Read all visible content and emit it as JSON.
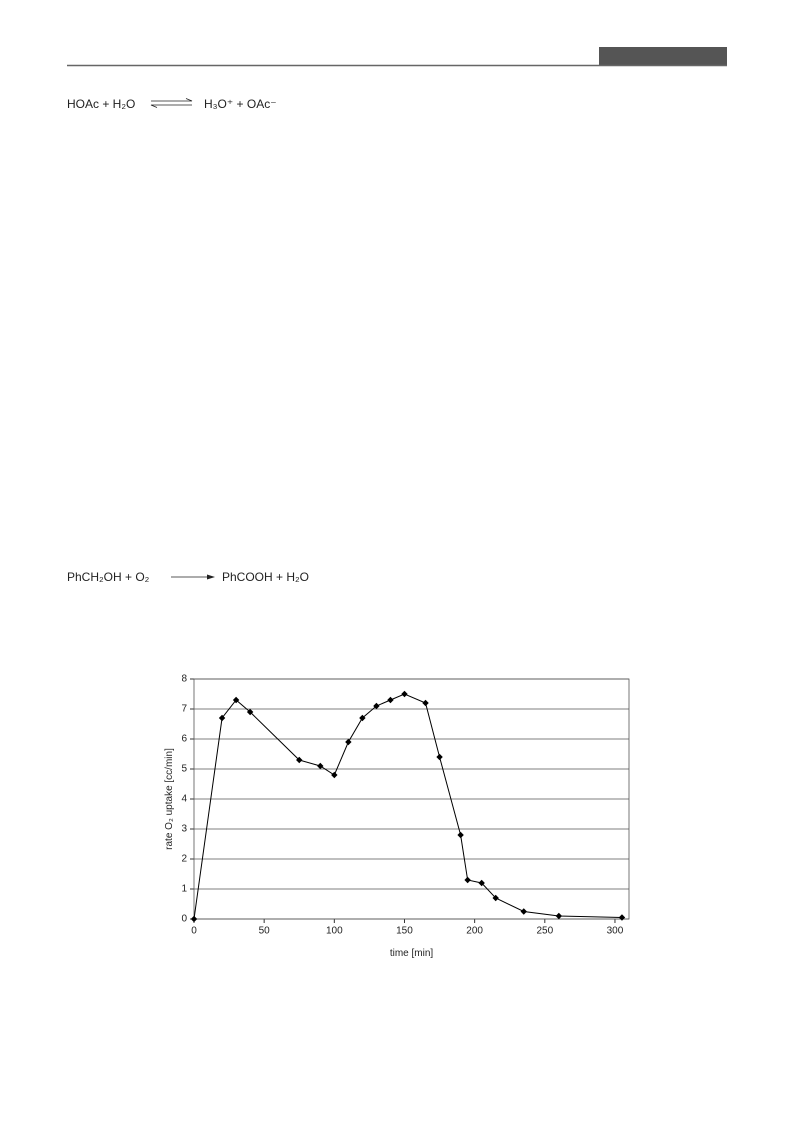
{
  "equations": [
    {
      "left": "HOAc + H₂O",
      "right": "H₃O⁺  + OAc⁻"
    },
    {
      "left": "PhCH₂OH  +  O₂",
      "right": "PhCOOH  + H₂O"
    }
  ],
  "chart_data": {
    "type": "line",
    "x": [
      0,
      20,
      30,
      40,
      75,
      90,
      100,
      110,
      120,
      130,
      140,
      150,
      165,
      175,
      190,
      195,
      205,
      215,
      235,
      260,
      305
    ],
    "series": [
      {
        "color": "#000000",
        "values": [
          0,
          6.7,
          7.3,
          6.9,
          5.3,
          5.1,
          4.8,
          5.9,
          6.7,
          7.1,
          7.3,
          7.5,
          7.2,
          5.4,
          2.8,
          1.3,
          1.2,
          0.7,
          0.25,
          0.1,
          0.05
        ]
      }
    ],
    "xlabel": "time [min]",
    "ylabel": "rate O₂ uptake [cc/min]",
    "xlim": [
      0,
      310
    ],
    "xticks": [
      0,
      50,
      100,
      150,
      200,
      250,
      300
    ],
    "ylim": [
      0,
      8
    ],
    "yticks": [
      0,
      1,
      2,
      3,
      4,
      5,
      6,
      7,
      8
    ],
    "grid": true
  }
}
